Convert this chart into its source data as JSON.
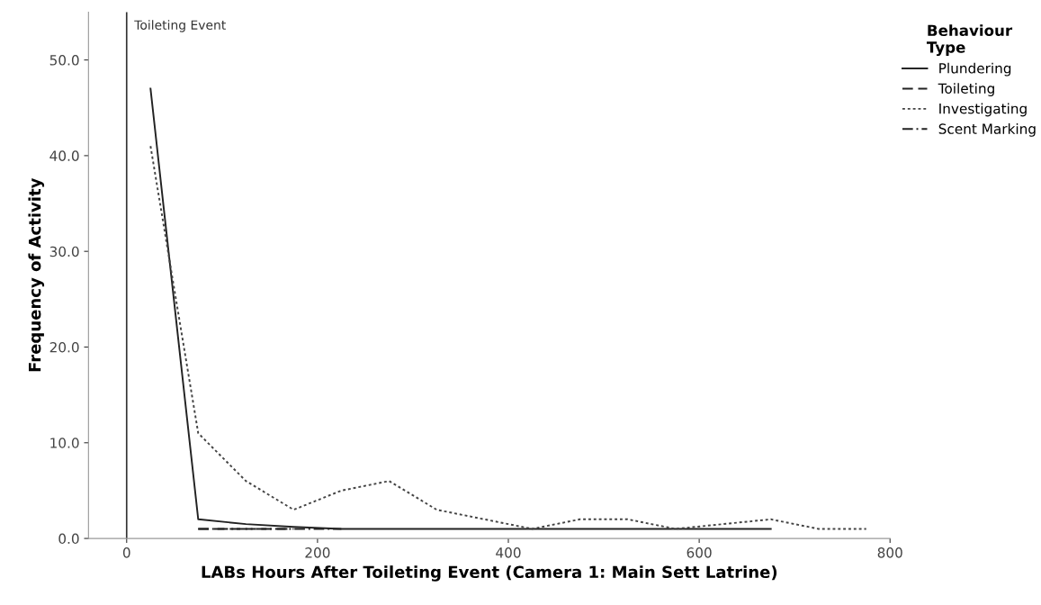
{
  "chart_data": {
    "type": "line",
    "xlabel": "LABs Hours After Toileting Event (Camera 1: Main Sett Latrine)",
    "ylabel": "Frequency of Activity",
    "legend_title": "Behaviour\nType",
    "legend": "right",
    "grid": false,
    "xlim": [
      -40,
      800
    ],
    "xticks": [
      0,
      200,
      400,
      600,
      800
    ],
    "ylim": [
      0,
      55
    ],
    "yticks": [
      {
        "value": 0,
        "label": "0.0"
      },
      {
        "value": 10,
        "label": "10.0"
      },
      {
        "value": 20,
        "label": "20.0"
      },
      {
        "value": 30,
        "label": "30.0"
      },
      {
        "value": 40,
        "label": "40.0"
      },
      {
        "value": 50,
        "label": "50.0"
      }
    ],
    "ref_lines": [
      {
        "axis": "x",
        "value": 0,
        "label": "Toileting Event",
        "color": "#333333",
        "line_style": "solid"
      }
    ],
    "series": [
      {
        "name": "Plundering",
        "color": "#222222",
        "line_style": "solid",
        "x": [
          25,
          75,
          125,
          175,
          225,
          275,
          325,
          375,
          425,
          475,
          525,
          575,
          625,
          675
        ],
        "values": [
          47,
          2,
          1.5,
          1.2,
          1,
          1,
          1,
          1,
          1,
          1,
          1,
          1,
          1,
          1
        ]
      },
      {
        "name": "Toileting",
        "color": "#222222",
        "line_style": "dashed",
        "x": [
          75,
          125,
          175
        ],
        "values": [
          1,
          1,
          1
        ]
      },
      {
        "name": "Investigating",
        "color": "#444444",
        "line_style": "dotted",
        "x": [
          25,
          75,
          125,
          175,
          225,
          275,
          325,
          375,
          425,
          475,
          525,
          575,
          625,
          675,
          725,
          775
        ],
        "values": [
          41,
          11,
          6,
          3,
          5,
          6,
          3,
          2,
          1,
          2,
          2,
          1,
          1.5,
          2,
          1,
          1
        ]
      },
      {
        "name": "Scent Marking",
        "color": "#222222",
        "line_style": "dashdot",
        "x": [
          75,
          125,
          175,
          225
        ],
        "values": [
          1,
          1,
          1,
          1
        ]
      }
    ]
  }
}
